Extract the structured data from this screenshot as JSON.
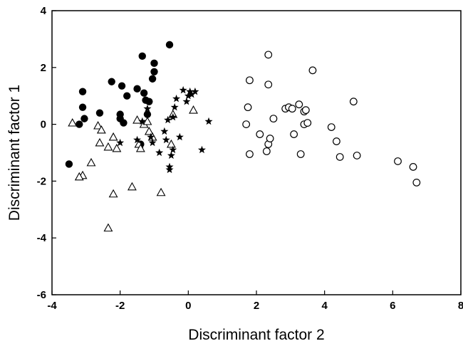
{
  "chart_data": {
    "type": "scatter",
    "title": "",
    "xlabel": "Discriminant factor 2",
    "ylabel": "Discriminant factor 1",
    "xlim": [
      -4,
      8
    ],
    "ylim": [
      -6,
      4
    ],
    "x_ticks": [
      "-4",
      "-2",
      "0",
      "2",
      "4",
      "6",
      "8"
    ],
    "y_ticks": [
      "-6",
      "-4",
      "-2",
      "0",
      "2",
      "4"
    ],
    "grid": false,
    "legend": "none",
    "series": [
      {
        "marker": "filled-circle",
        "color": "#000000",
        "points": [
          [
            -3.5,
            -1.4
          ],
          [
            -3.2,
            0.0
          ],
          [
            -3.1,
            1.15
          ],
          [
            -3.1,
            0.6
          ],
          [
            -3.05,
            0.2
          ],
          [
            -2.6,
            0.4
          ],
          [
            -2.25,
            1.5
          ],
          [
            -2.0,
            0.35
          ],
          [
            -2.0,
            0.2
          ],
          [
            -1.95,
            1.35
          ],
          [
            -1.9,
            0.05
          ],
          [
            -1.8,
            1.0
          ],
          [
            -1.5,
            1.25
          ],
          [
            -1.35,
            2.4
          ],
          [
            -1.3,
            1.1
          ],
          [
            -1.25,
            0.85
          ],
          [
            -1.2,
            0.35
          ],
          [
            -1.15,
            0.8
          ],
          [
            -1.05,
            1.6
          ],
          [
            -1.0,
            2.15
          ],
          [
            -1.0,
            1.85
          ],
          [
            -0.55,
            2.8
          ],
          [
            -1.4,
            -0.7
          ]
        ]
      },
      {
        "marker": "open-triangle",
        "color": "#000000",
        "points": [
          [
            -3.4,
            0.05
          ],
          [
            -3.1,
            -1.8
          ],
          [
            -3.2,
            -1.85
          ],
          [
            -2.85,
            -1.35
          ],
          [
            -2.65,
            -0.05
          ],
          [
            -2.55,
            -0.2
          ],
          [
            -2.6,
            -0.65
          ],
          [
            -2.35,
            -0.8
          ],
          [
            -2.2,
            -0.45
          ],
          [
            -2.2,
            -2.45
          ],
          [
            -2.35,
            -3.65
          ],
          [
            -2.1,
            -0.85
          ],
          [
            -1.65,
            -2.2
          ],
          [
            -1.5,
            0.15
          ],
          [
            -1.45,
            -0.7
          ],
          [
            -1.4,
            -0.85
          ],
          [
            -1.3,
            0.0
          ],
          [
            -1.2,
            0.1
          ],
          [
            -1.15,
            -0.25
          ],
          [
            -1.05,
            -0.45
          ],
          [
            -0.8,
            -2.4
          ],
          [
            -0.45,
            0.35
          ],
          [
            0.15,
            0.5
          ],
          [
            -0.5,
            -0.7
          ]
        ]
      },
      {
        "marker": "star",
        "color": "#000000",
        "points": [
          [
            -2.0,
            -0.65
          ],
          [
            -1.5,
            -0.55
          ],
          [
            -1.35,
            0.1
          ],
          [
            -1.2,
            0.55
          ],
          [
            -1.1,
            -0.45
          ],
          [
            -1.05,
            -0.65
          ],
          [
            -0.85,
            -1.0
          ],
          [
            -0.7,
            -0.25
          ],
          [
            -0.65,
            -0.55
          ],
          [
            -0.6,
            0.15
          ],
          [
            -0.55,
            -1.5
          ],
          [
            -0.55,
            -1.6
          ],
          [
            -0.5,
            -1.1
          ],
          [
            -0.45,
            0.25
          ],
          [
            -0.45,
            -0.9
          ],
          [
            -0.4,
            0.6
          ],
          [
            -0.35,
            0.9
          ],
          [
            -0.25,
            -0.45
          ],
          [
            -0.15,
            1.2
          ],
          [
            -0.05,
            0.8
          ],
          [
            0.0,
            1.0
          ],
          [
            0.05,
            1.15
          ],
          [
            0.1,
            1.05
          ],
          [
            0.2,
            1.15
          ],
          [
            0.4,
            -0.9
          ],
          [
            0.6,
            0.1
          ]
        ]
      },
      {
        "marker": "open-circle",
        "color": "#000000",
        "points": [
          [
            1.7,
            0.0
          ],
          [
            1.75,
            0.6
          ],
          [
            1.8,
            1.55
          ],
          [
            1.8,
            -1.05
          ],
          [
            2.1,
            -0.35
          ],
          [
            2.3,
            -0.95
          ],
          [
            2.35,
            2.45
          ],
          [
            2.35,
            -0.7
          ],
          [
            2.35,
            1.4
          ],
          [
            2.4,
            -0.5
          ],
          [
            2.5,
            0.2
          ],
          [
            2.85,
            0.55
          ],
          [
            2.95,
            0.6
          ],
          [
            3.05,
            0.55
          ],
          [
            3.1,
            -0.35
          ],
          [
            3.25,
            0.7
          ],
          [
            3.3,
            -1.05
          ],
          [
            3.4,
            0.45
          ],
          [
            3.4,
            0.0
          ],
          [
            3.45,
            0.5
          ],
          [
            3.5,
            0.05
          ],
          [
            3.65,
            1.9
          ],
          [
            4.2,
            -0.1
          ],
          [
            4.35,
            -0.6
          ],
          [
            4.45,
            -1.15
          ],
          [
            4.85,
            0.8
          ],
          [
            4.95,
            -1.1
          ],
          [
            6.15,
            -1.3
          ],
          [
            6.6,
            -1.5
          ],
          [
            6.7,
            -2.05
          ]
        ]
      }
    ]
  }
}
